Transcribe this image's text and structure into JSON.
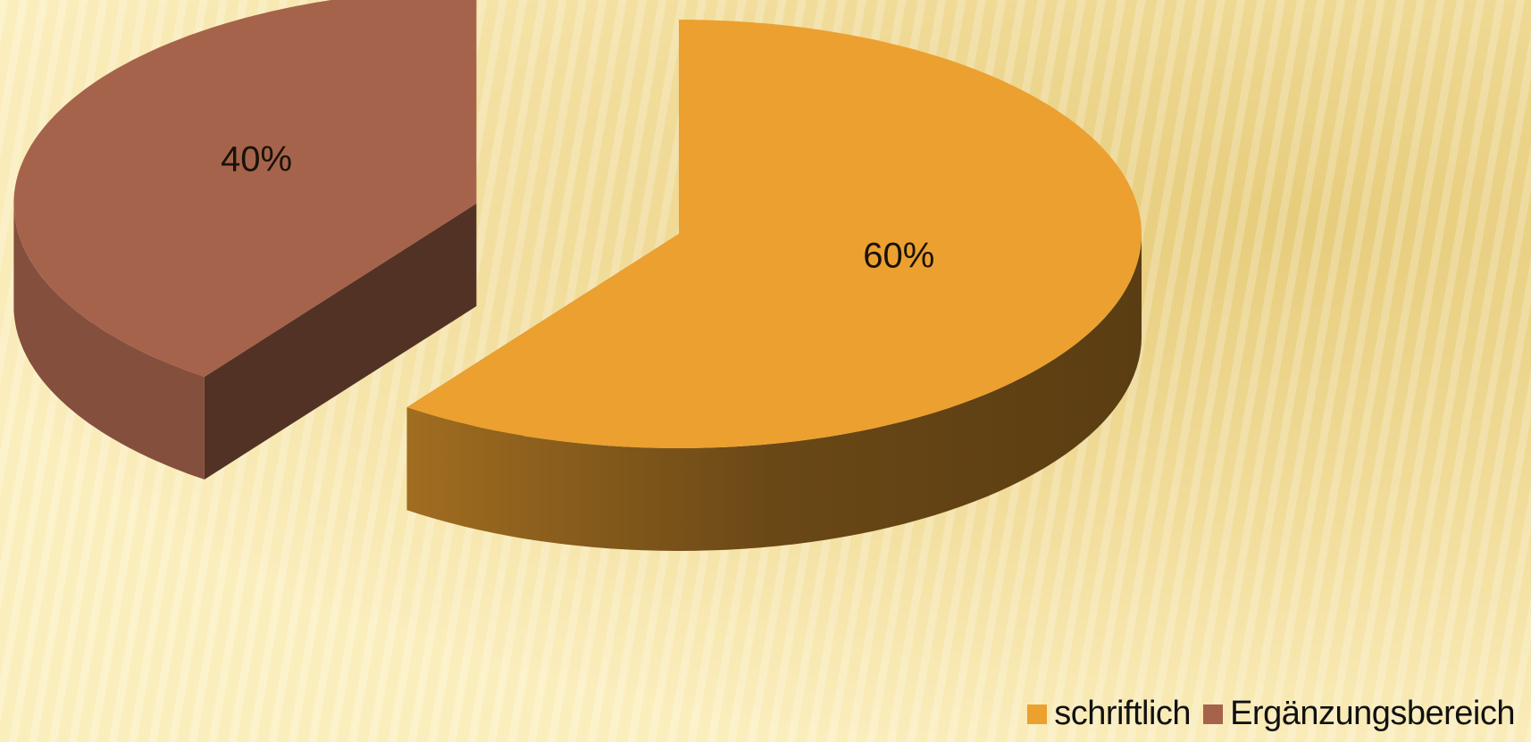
{
  "chart_data": {
    "type": "pie",
    "categories": [
      "schriftlich",
      "Ergänzungsbereich"
    ],
    "values": [
      60,
      40
    ],
    "value_labels": [
      "60%",
      "40%"
    ],
    "colors": [
      "#eca030",
      "#a5634c"
    ],
    "legend": "bottom-right"
  }
}
